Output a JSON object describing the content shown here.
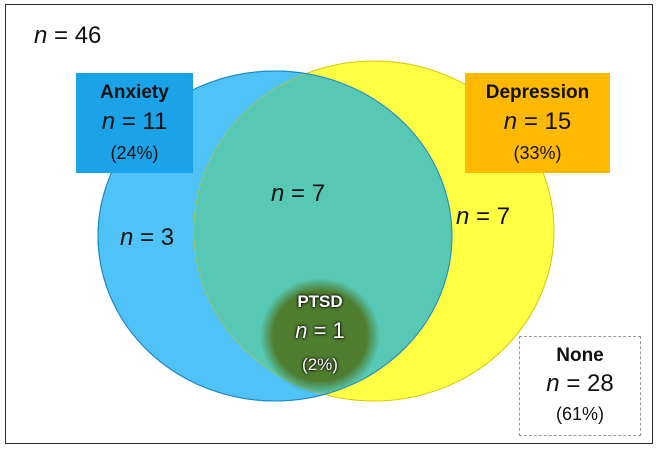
{
  "total": {
    "var": "n",
    "text": " = 46"
  },
  "anxiety": {
    "title": "Anxiety",
    "var": "n",
    "count": " = 11",
    "pct": "(24%)",
    "only_var": "n",
    "only": " = 3",
    "color": "#1aa3e8",
    "circle_color": "#4fc3f7"
  },
  "depression": {
    "title": "Depression",
    "var": "n",
    "count": " = 15",
    "pct": "(33%)",
    "only_var": "n",
    "only": " = 7",
    "color": "#ffb900",
    "circle_color": "#ffff44"
  },
  "overlap": {
    "var": "n",
    "text": " = 7",
    "color": "#56c8b4"
  },
  "ptsd": {
    "title": "PTSD",
    "var": "n",
    "count": " = 1",
    "pct": "(2%)",
    "color": "#4f7d2f"
  },
  "none": {
    "title": "None",
    "var": "n",
    "count": " = 28",
    "pct": "(61%)"
  }
}
